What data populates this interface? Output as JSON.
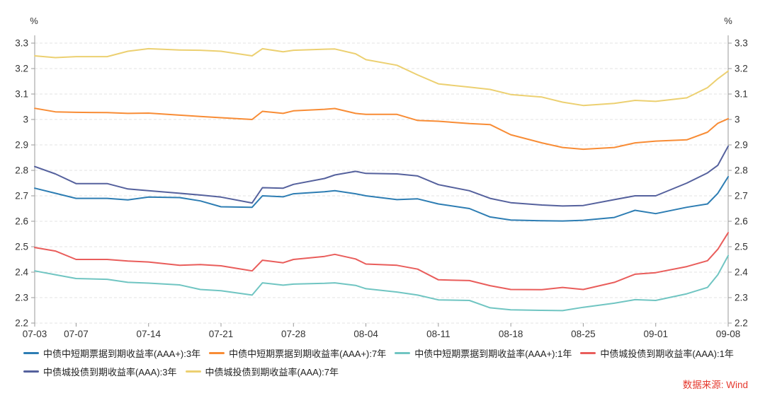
{
  "page": {
    "source_note": "数据来源: Wind",
    "source_color": "#e5392e"
  },
  "chart_data": {
    "type": "line",
    "title": "",
    "unit_label": "%",
    "ylabel": "%",
    "ylim": [
      2.2,
      3.3
    ],
    "y_tick_step": 0.1,
    "y_ticks": [
      "3.3",
      "3.2",
      "3.1",
      "3",
      "2.9",
      "2.8",
      "2.7",
      "2.6",
      "2.5",
      "2.4",
      "2.3",
      "2.2"
    ],
    "x_ticks": [
      {
        "label": "07-03",
        "day": 0
      },
      {
        "label": "07-07",
        "day": 4
      },
      {
        "label": "07-14",
        "day": 11
      },
      {
        "label": "07-21",
        "day": 18
      },
      {
        "label": "07-28",
        "day": 25
      },
      {
        "label": "08-04",
        "day": 32
      },
      {
        "label": "08-11",
        "day": 39
      },
      {
        "label": "08-18",
        "day": 46
      },
      {
        "label": "08-25",
        "day": 53
      },
      {
        "label": "09-01",
        "day": 60
      },
      {
        "label": "09-08",
        "day": 67
      }
    ],
    "x_range_days": 67,
    "grid": "dashed-horizontal",
    "legend_position": "bottom-left",
    "axis_color": "#9a9a9a",
    "grid_color": "#e3e3e3",
    "tick_label_color": "#333333",
    "dates": [
      "07-03",
      "07-05",
      "07-07",
      "07-10",
      "07-12",
      "07-14",
      "07-17",
      "07-19",
      "07-21",
      "07-24",
      "07-25",
      "07-27",
      "07-28",
      "07-31",
      "08-01",
      "08-03",
      "08-04",
      "08-07",
      "08-09",
      "08-11",
      "08-14",
      "08-16",
      "08-18",
      "08-21",
      "08-23",
      "08-25",
      "08-28",
      "08-30",
      "09-01",
      "09-04",
      "09-06",
      "09-07",
      "09-08"
    ],
    "x_days": [
      0,
      2,
      4,
      7,
      9,
      11,
      14,
      16,
      18,
      21,
      22,
      24,
      25,
      28,
      29,
      31,
      32,
      35,
      37,
      39,
      42,
      44,
      46,
      49,
      51,
      53,
      56,
      58,
      60,
      63,
      65,
      66,
      67
    ],
    "series": [
      {
        "name": "中债中短期票据到期收益率(AAA+):3年",
        "color": "#2d7db3",
        "values": [
          2.73,
          2.71,
          2.69,
          2.69,
          2.684,
          2.695,
          2.693,
          2.68,
          2.657,
          2.655,
          2.7,
          2.696,
          2.708,
          2.716,
          2.72,
          2.708,
          2.7,
          2.685,
          2.688,
          2.668,
          2.65,
          2.617,
          2.605,
          2.602,
          2.601,
          2.604,
          2.615,
          2.643,
          2.63,
          2.655,
          2.668,
          2.71,
          2.775
        ]
      },
      {
        "name": "中债中短期票据到期收益率(AAA+):7年",
        "color": "#f88c35",
        "values": [
          3.044,
          3.03,
          3.028,
          3.027,
          3.024,
          3.025,
          3.017,
          3.012,
          3.007,
          3.0,
          3.032,
          3.024,
          3.034,
          3.04,
          3.043,
          3.024,
          3.02,
          3.02,
          2.996,
          2.993,
          2.984,
          2.98,
          2.94,
          2.908,
          2.89,
          2.883,
          2.89,
          2.908,
          2.915,
          2.92,
          2.95,
          2.985,
          3.003
        ]
      },
      {
        "name": "中债中短期票据到期收益率(AAA+):1年",
        "color": "#70c5c2",
        "values": [
          2.405,
          2.39,
          2.375,
          2.372,
          2.36,
          2.357,
          2.35,
          2.332,
          2.327,
          2.31,
          2.358,
          2.349,
          2.353,
          2.356,
          2.358,
          2.348,
          2.335,
          2.322,
          2.31,
          2.291,
          2.289,
          2.26,
          2.252,
          2.25,
          2.249,
          2.262,
          2.278,
          2.292,
          2.289,
          2.315,
          2.34,
          2.39,
          2.465
        ]
      },
      {
        "name": "中债城投债到期收益率(AAA):1年",
        "color": "#e95d5b",
        "values": [
          2.497,
          2.483,
          2.45,
          2.45,
          2.444,
          2.44,
          2.427,
          2.43,
          2.425,
          2.405,
          2.447,
          2.437,
          2.45,
          2.462,
          2.47,
          2.452,
          2.432,
          2.427,
          2.412,
          2.37,
          2.367,
          2.347,
          2.332,
          2.331,
          2.34,
          2.332,
          2.36,
          2.392,
          2.398,
          2.422,
          2.445,
          2.49,
          2.555
        ]
      },
      {
        "name": "中债城投债到期收益率(AAA):3年",
        "color": "#55619d",
        "values": [
          2.815,
          2.786,
          2.748,
          2.748,
          2.727,
          2.72,
          2.71,
          2.703,
          2.695,
          2.672,
          2.732,
          2.73,
          2.745,
          2.768,
          2.782,
          2.796,
          2.788,
          2.786,
          2.778,
          2.744,
          2.72,
          2.69,
          2.673,
          2.664,
          2.66,
          2.662,
          2.685,
          2.7,
          2.7,
          2.75,
          2.79,
          2.82,
          2.895
        ]
      },
      {
        "name": "中债城投债到期收益率(AAA):7年",
        "color": "#ecd071",
        "values": [
          3.25,
          3.243,
          3.247,
          3.247,
          3.268,
          3.278,
          3.273,
          3.272,
          3.268,
          3.25,
          3.278,
          3.266,
          3.272,
          3.276,
          3.277,
          3.258,
          3.235,
          3.213,
          3.175,
          3.14,
          3.127,
          3.118,
          3.098,
          3.088,
          3.068,
          3.055,
          3.063,
          3.075,
          3.071,
          3.085,
          3.125,
          3.16,
          3.19
        ]
      }
    ],
    "legend_rows": [
      [
        0,
        1,
        2,
        3
      ],
      [
        4,
        5
      ]
    ]
  }
}
